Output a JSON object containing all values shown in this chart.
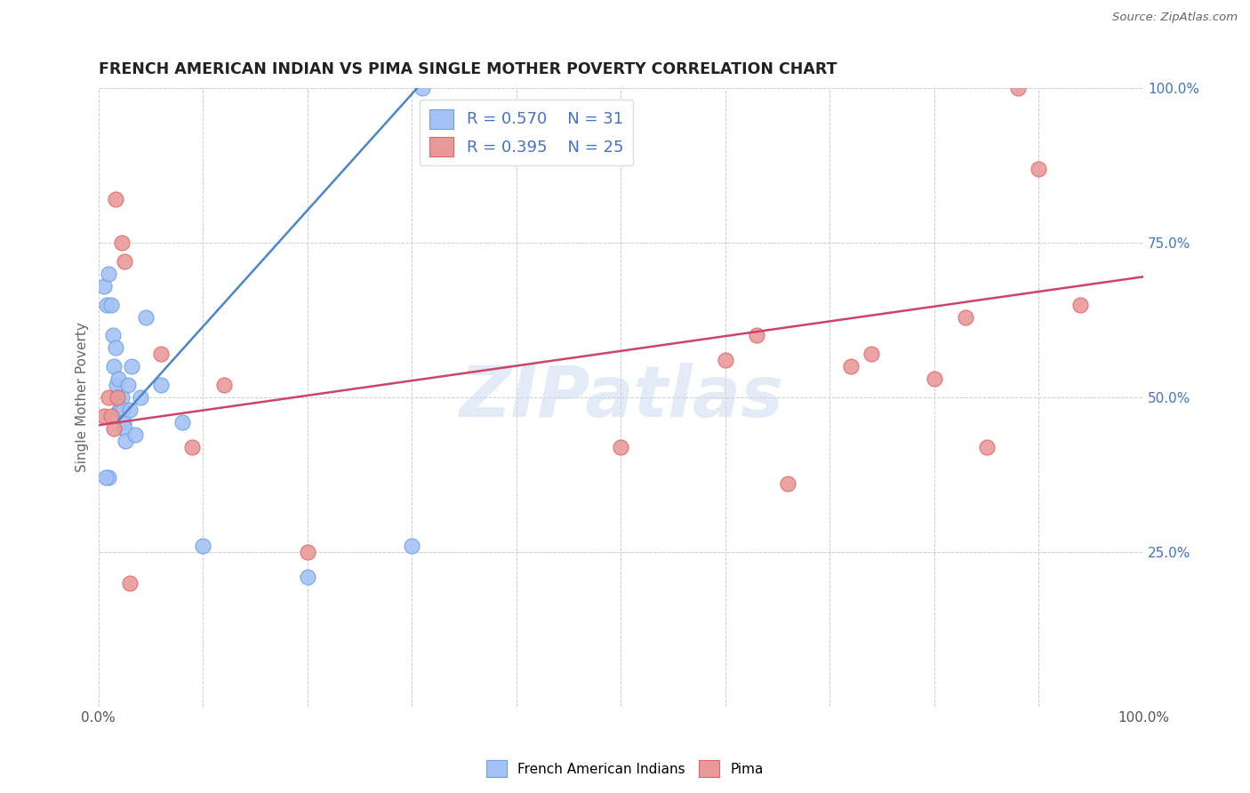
{
  "title": "FRENCH AMERICAN INDIAN VS PIMA SINGLE MOTHER POVERTY CORRELATION CHART",
  "source": "Source: ZipAtlas.com",
  "ylabel": "Single Mother Poverty",
  "xlim": [
    0.0,
    1.0
  ],
  "ylim": [
    0.0,
    1.0
  ],
  "xticks": [
    0.0,
    0.1,
    0.2,
    0.3,
    0.4,
    0.5,
    0.6,
    0.7,
    0.8,
    0.9,
    1.0
  ],
  "xtick_labels": [
    "0.0%",
    "",
    "",
    "",
    "",
    "",
    "",
    "",
    "",
    "",
    "100.0%"
  ],
  "yticks": [
    0.0,
    0.25,
    0.5,
    0.75,
    1.0
  ],
  "ytick_right_labels": [
    "",
    "25.0%",
    "50.0%",
    "75.0%",
    "100.0%"
  ],
  "legend_R": [
    "R = 0.570",
    "R = 0.395"
  ],
  "legend_N": [
    "N = 31",
    "N = 25"
  ],
  "legend_labels": [
    "French American Indians",
    "Pima"
  ],
  "blue_fill": "#a4c2f4",
  "blue_edge": "#6d9eeb",
  "pink_fill": "#ea9999",
  "pink_edge": "#e06666",
  "blue_line_color": "#4a86c8",
  "pink_line_color": "#cc4466",
  "watermark_color": "#c8d8f0",
  "title_color": "#222222",
  "source_color": "#666666",
  "ylabel_color": "#666666",
  "right_tick_color": "#4472c4",
  "grid_color": "#cccccc",
  "french_x": [
    0.005,
    0.008,
    0.01,
    0.012,
    0.014,
    0.015,
    0.016,
    0.017,
    0.018,
    0.019,
    0.02,
    0.021,
    0.022,
    0.023,
    0.024,
    0.025,
    0.026,
    0.028,
    0.03,
    0.032,
    0.035,
    0.04,
    0.045,
    0.06,
    0.08,
    0.1,
    0.2,
    0.3,
    0.31,
    0.01,
    0.007
  ],
  "french_y": [
    0.68,
    0.65,
    0.7,
    0.65,
    0.6,
    0.55,
    0.58,
    0.52,
    0.5,
    0.53,
    0.48,
    0.48,
    0.5,
    0.48,
    0.46,
    0.45,
    0.43,
    0.52,
    0.48,
    0.55,
    0.44,
    0.5,
    0.63,
    0.52,
    0.46,
    0.26,
    0.21,
    0.26,
    1.0,
    0.37,
    0.37
  ],
  "pima_x": [
    0.005,
    0.01,
    0.012,
    0.015,
    0.016,
    0.018,
    0.022,
    0.025,
    0.06,
    0.09,
    0.12,
    0.5,
    0.6,
    0.63,
    0.72,
    0.74,
    0.8,
    0.83,
    0.85,
    0.88,
    0.9,
    0.94,
    0.66,
    0.03,
    0.2
  ],
  "pima_y": [
    0.47,
    0.5,
    0.47,
    0.45,
    0.82,
    0.5,
    0.75,
    0.72,
    0.57,
    0.42,
    0.52,
    0.42,
    0.56,
    0.6,
    0.55,
    0.57,
    0.53,
    0.63,
    0.42,
    1.0,
    0.87,
    0.65,
    0.36,
    0.2,
    0.25
  ],
  "blue_line_x": [
    0.019,
    0.305
  ],
  "blue_line_y": [
    0.462,
    1.0
  ],
  "pink_line_x": [
    0.0,
    1.0
  ],
  "pink_line_y": [
    0.455,
    0.695
  ]
}
